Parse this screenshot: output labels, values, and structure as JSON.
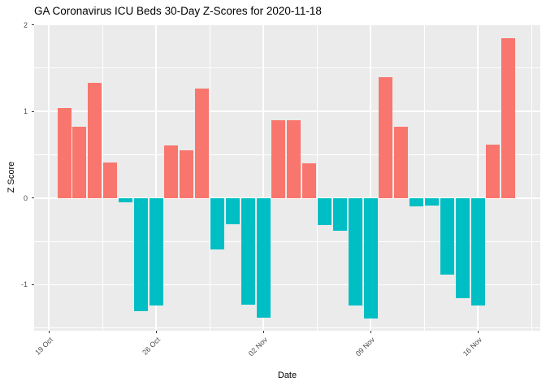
{
  "title": "GA Coronavirus ICU Beds 30-Day Z-Scores for 2020-11-18",
  "chart_data": {
    "type": "bar",
    "title": "GA Coronavirus ICU Beds 30-Day Z-Scores for 2020-11-18",
    "xlabel": "Date",
    "ylabel": "Z Score",
    "x": [
      "2020-10-20",
      "2020-10-21",
      "2020-10-22",
      "2020-10-23",
      "2020-10-24",
      "2020-10-25",
      "2020-10-26",
      "2020-10-27",
      "2020-10-28",
      "2020-10-29",
      "2020-10-30",
      "2020-10-31",
      "2020-11-01",
      "2020-11-02",
      "2020-11-03",
      "2020-11-04",
      "2020-11-05",
      "2020-11-06",
      "2020-11-07",
      "2020-11-08",
      "2020-11-09",
      "2020-11-10",
      "2020-11-11",
      "2020-11-12",
      "2020-11-13",
      "2020-11-14",
      "2020-11-15",
      "2020-11-16",
      "2020-11-17",
      "2020-11-18"
    ],
    "values": [
      1.04,
      0.82,
      1.33,
      0.41,
      -0.05,
      -1.31,
      -1.24,
      0.61,
      0.55,
      1.26,
      -0.59,
      -0.3,
      -1.23,
      -1.38,
      0.9,
      0.9,
      0.4,
      -0.31,
      -0.38,
      -1.24,
      -1.39,
      1.4,
      0.82,
      -0.1,
      -0.09,
      -0.88,
      -1.16,
      -1.24,
      0.62,
      1.85
    ],
    "positive_color": "#F8766D",
    "negative_color": "#00BFC4",
    "panel_background": "#EBEBEB",
    "gridline_color": "#FFFFFF",
    "ylim": [
      -1.53,
      2.0
    ],
    "grid": true,
    "legend": "none",
    "y_major_ticks": [
      {
        "label": "2",
        "value": 2
      },
      {
        "label": "1",
        "value": 1
      },
      {
        "label": "0",
        "value": 0
      },
      {
        "label": "-1",
        "value": -1
      }
    ],
    "y_minor_values": [
      1.5,
      0.5,
      -0.5,
      -1.5
    ],
    "x_major_ticks": [
      {
        "label": "19 Oct",
        "day": -1
      },
      {
        "label": "26 Oct",
        "day": 6
      },
      {
        "label": "02 Nov",
        "day": 13
      },
      {
        "label": "09 Nov",
        "day": 20
      },
      {
        "label": "16 Nov",
        "day": 27
      }
    ],
    "x_minor_days": [
      2.5,
      9.5,
      16.5,
      23.5,
      30.5
    ]
  }
}
